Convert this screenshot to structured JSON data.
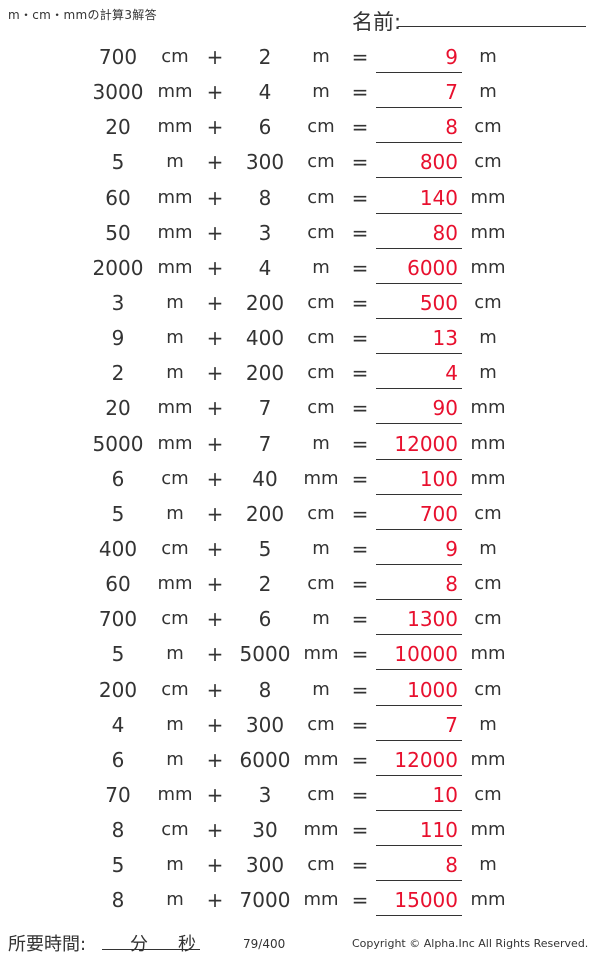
{
  "header": {
    "title": "m・cm・mmの計算3解答",
    "name_label": "名前:"
  },
  "rows": [
    {
      "n1": "700",
      "u1": "cm",
      "op": "+",
      "n2": "2",
      "u2": "m",
      "eq": "=",
      "ans": "9",
      "u3": "m"
    },
    {
      "n1": "3000",
      "u1": "mm",
      "op": "+",
      "n2": "4",
      "u2": "m",
      "eq": "=",
      "ans": "7",
      "u3": "m"
    },
    {
      "n1": "20",
      "u1": "mm",
      "op": "+",
      "n2": "6",
      "u2": "cm",
      "eq": "=",
      "ans": "8",
      "u3": "cm"
    },
    {
      "n1": "5",
      "u1": "m",
      "op": "+",
      "n2": "300",
      "u2": "cm",
      "eq": "=",
      "ans": "800",
      "u3": "cm"
    },
    {
      "n1": "60",
      "u1": "mm",
      "op": "+",
      "n2": "8",
      "u2": "cm",
      "eq": "=",
      "ans": "140",
      "u3": "mm"
    },
    {
      "n1": "50",
      "u1": "mm",
      "op": "+",
      "n2": "3",
      "u2": "cm",
      "eq": "=",
      "ans": "80",
      "u3": "mm"
    },
    {
      "n1": "2000",
      "u1": "mm",
      "op": "+",
      "n2": "4",
      "u2": "m",
      "eq": "=",
      "ans": "6000",
      "u3": "mm"
    },
    {
      "n1": "3",
      "u1": "m",
      "op": "+",
      "n2": "200",
      "u2": "cm",
      "eq": "=",
      "ans": "500",
      "u3": "cm"
    },
    {
      "n1": "9",
      "u1": "m",
      "op": "+",
      "n2": "400",
      "u2": "cm",
      "eq": "=",
      "ans": "13",
      "u3": "m"
    },
    {
      "n1": "2",
      "u1": "m",
      "op": "+",
      "n2": "200",
      "u2": "cm",
      "eq": "=",
      "ans": "4",
      "u3": "m"
    },
    {
      "n1": "20",
      "u1": "mm",
      "op": "+",
      "n2": "7",
      "u2": "cm",
      "eq": "=",
      "ans": "90",
      "u3": "mm"
    },
    {
      "n1": "5000",
      "u1": "mm",
      "op": "+",
      "n2": "7",
      "u2": "m",
      "eq": "=",
      "ans": "12000",
      "u3": "mm"
    },
    {
      "n1": "6",
      "u1": "cm",
      "op": "+",
      "n2": "40",
      "u2": "mm",
      "eq": "=",
      "ans": "100",
      "u3": "mm"
    },
    {
      "n1": "5",
      "u1": "m",
      "op": "+",
      "n2": "200",
      "u2": "cm",
      "eq": "=",
      "ans": "700",
      "u3": "cm"
    },
    {
      "n1": "400",
      "u1": "cm",
      "op": "+",
      "n2": "5",
      "u2": "m",
      "eq": "=",
      "ans": "9",
      "u3": "m"
    },
    {
      "n1": "60",
      "u1": "mm",
      "op": "+",
      "n2": "2",
      "u2": "cm",
      "eq": "=",
      "ans": "8",
      "u3": "cm"
    },
    {
      "n1": "700",
      "u1": "cm",
      "op": "+",
      "n2": "6",
      "u2": "m",
      "eq": "=",
      "ans": "1300",
      "u3": "cm"
    },
    {
      "n1": "5",
      "u1": "m",
      "op": "+",
      "n2": "5000",
      "u2": "mm",
      "eq": "=",
      "ans": "10000",
      "u3": "mm"
    },
    {
      "n1": "200",
      "u1": "cm",
      "op": "+",
      "n2": "8",
      "u2": "m",
      "eq": "=",
      "ans": "1000",
      "u3": "cm"
    },
    {
      "n1": "4",
      "u1": "m",
      "op": "+",
      "n2": "300",
      "u2": "cm",
      "eq": "=",
      "ans": "7",
      "u3": "m"
    },
    {
      "n1": "6",
      "u1": "m",
      "op": "+",
      "n2": "6000",
      "u2": "mm",
      "eq": "=",
      "ans": "12000",
      "u3": "mm"
    },
    {
      "n1": "70",
      "u1": "mm",
      "op": "+",
      "n2": "3",
      "u2": "cm",
      "eq": "=",
      "ans": "10",
      "u3": "cm"
    },
    {
      "n1": "8",
      "u1": "cm",
      "op": "+",
      "n2": "30",
      "u2": "mm",
      "eq": "=",
      "ans": "110",
      "u3": "mm"
    },
    {
      "n1": "5",
      "u1": "m",
      "op": "+",
      "n2": "300",
      "u2": "cm",
      "eq": "=",
      "ans": "8",
      "u3": "m"
    },
    {
      "n1": "8",
      "u1": "m",
      "op": "+",
      "n2": "7000",
      "u2": "mm",
      "eq": "=",
      "ans": "15000",
      "u3": "mm"
    }
  ],
  "footer": {
    "time_label": "所要時間:",
    "minutes": "分",
    "seconds": "秒",
    "page": "79/400",
    "copyright": "Copyright © Alpha.Inc All Rights Reserved."
  },
  "colors": {
    "answer": "#e8102e",
    "text": "#333333"
  }
}
